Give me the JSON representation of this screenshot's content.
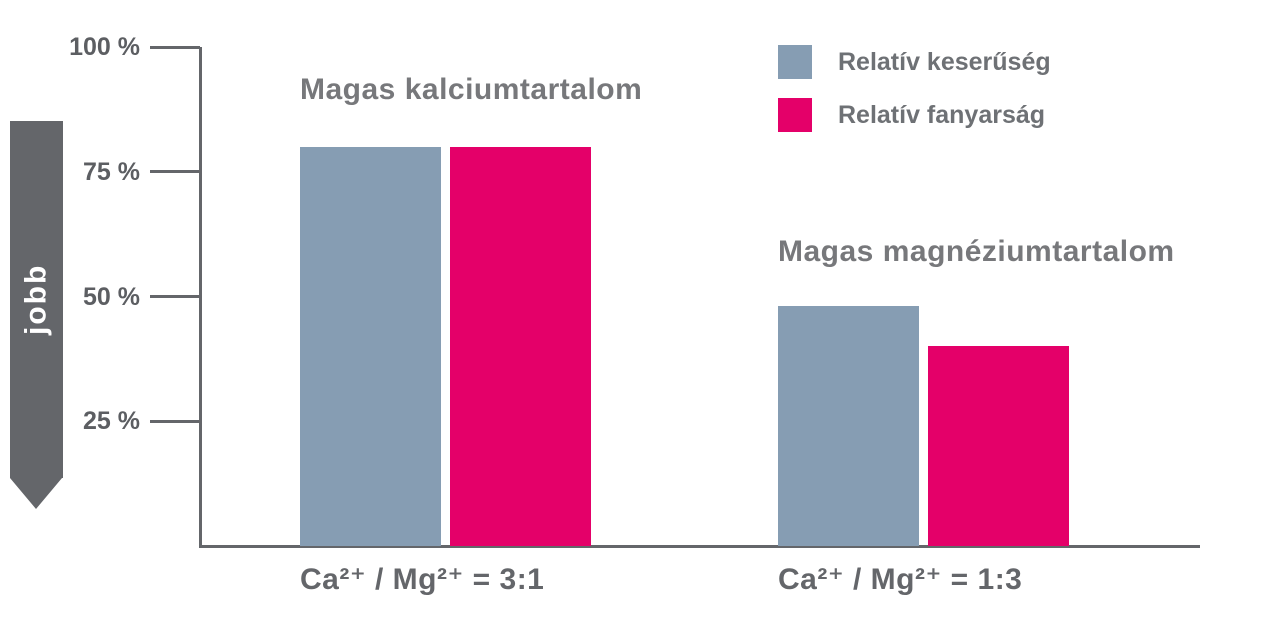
{
  "chart_data": {
    "type": "bar",
    "title": "",
    "direction_label": "jobb",
    "legend_position": "top-right",
    "grid": false,
    "ylim": [
      0,
      100
    ],
    "yticks": [
      {
        "value": 100,
        "label": "100 %"
      },
      {
        "value": 75,
        "label": "75 %"
      },
      {
        "value": 50,
        "label": "50 %"
      },
      {
        "value": 25,
        "label": "25 %"
      }
    ],
    "series": [
      {
        "name": "Relatív keserűség",
        "color": "#869DB3",
        "values": [
          80,
          48
        ]
      },
      {
        "name": "Relatív fanyarság",
        "color": "#E40069",
        "values": [
          80,
          40
        ]
      }
    ],
    "groups": [
      {
        "title": "Magas kalciumtartalom",
        "category": "Ca²⁺ / Mg²⁺ = 3:1"
      },
      {
        "title": "Magas magnéziumtartalom",
        "category": "Ca²⁺ / Mg²⁺ = 1:3"
      }
    ]
  },
  "colors": {
    "background": "#FFFFFF",
    "axis": "#64666A",
    "arrow": "#64666A",
    "arrow_text": "#FFFFFF",
    "tick_text": "#5C5E62",
    "group_title_text": "#77787B",
    "category_text": "#64666A",
    "legend_text": "#6E7175"
  }
}
